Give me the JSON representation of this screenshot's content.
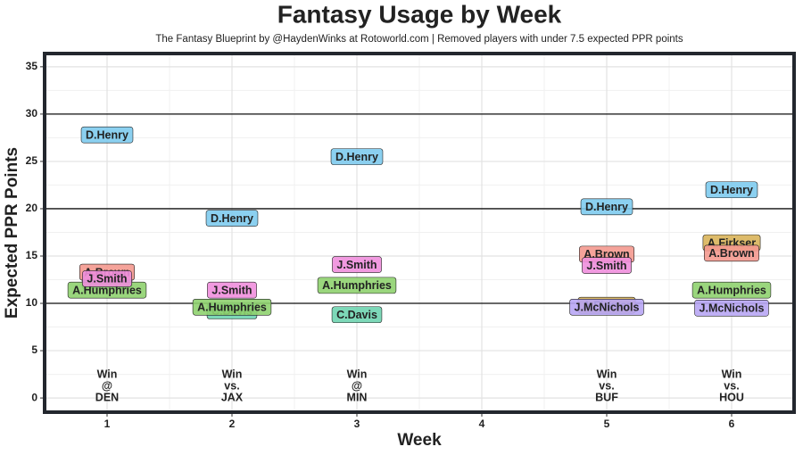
{
  "chart_data": {
    "type": "labeled-scatter",
    "title": "Fantasy Usage by Week",
    "subtitle": "The Fantasy Blueprint by @HaydenWinks at Rotoworld.com | Removed players with under 7.5 expected PPR points",
    "x_label": "Week",
    "y_label": "Expected PPR Points",
    "xlim": [
      0.5,
      6.5
    ],
    "xticks": [
      1,
      2,
      3,
      4,
      5,
      6
    ],
    "ylim": [
      -1.5,
      36.4
    ],
    "yticks": [
      0,
      5,
      10,
      15,
      20,
      25,
      30,
      35
    ],
    "grid": true,
    "hlines": [
      10,
      20,
      30
    ],
    "series": [
      {
        "name": "C.Davis",
        "color": "#6fd4b0",
        "x": [
          1,
          2,
          3
        ],
        "values": [
          12.4,
          9.2,
          8.8
        ]
      },
      {
        "name": "A.Humphries",
        "color": "#8fd16f",
        "x": [
          1,
          2,
          3,
          6
        ],
        "values": [
          11.4,
          9.6,
          11.9,
          11.4
        ]
      },
      {
        "name": "A.Firkser",
        "color": "#d9b45a",
        "x": [
          5,
          6
        ],
        "values": [
          9.8,
          16.4
        ]
      },
      {
        "name": "A.Brown",
        "color": "#f4998f",
        "x": [
          1,
          5,
          6
        ],
        "values": [
          13.3,
          15.2,
          15.3
        ]
      },
      {
        "name": "J.Smith",
        "color": "#f08fdd",
        "x": [
          1,
          2,
          3,
          5
        ],
        "values": [
          12.6,
          11.4,
          14.1,
          14.0
        ]
      },
      {
        "name": "J.McNichols",
        "color": "#b8a6f4",
        "x": [
          5,
          6
        ],
        "values": [
          9.6,
          9.5
        ]
      },
      {
        "name": "D.Henry",
        "color": "#7ecbee",
        "x": [
          1,
          2,
          3,
          5,
          6
        ],
        "values": [
          27.8,
          19.0,
          25.5,
          20.2,
          22.0
        ]
      }
    ],
    "annotations": [
      {
        "x": 1,
        "lines": [
          "Win",
          "@",
          "DEN"
        ]
      },
      {
        "x": 2,
        "lines": [
          "Win",
          "vs.",
          "JAX"
        ]
      },
      {
        "x": 3,
        "lines": [
          "Win",
          "@",
          "MIN"
        ]
      },
      {
        "x": 5,
        "lines": [
          "Win",
          "vs.",
          "BUF"
        ]
      },
      {
        "x": 6,
        "lines": [
          "Win",
          "vs.",
          "HOU"
        ]
      }
    ]
  }
}
